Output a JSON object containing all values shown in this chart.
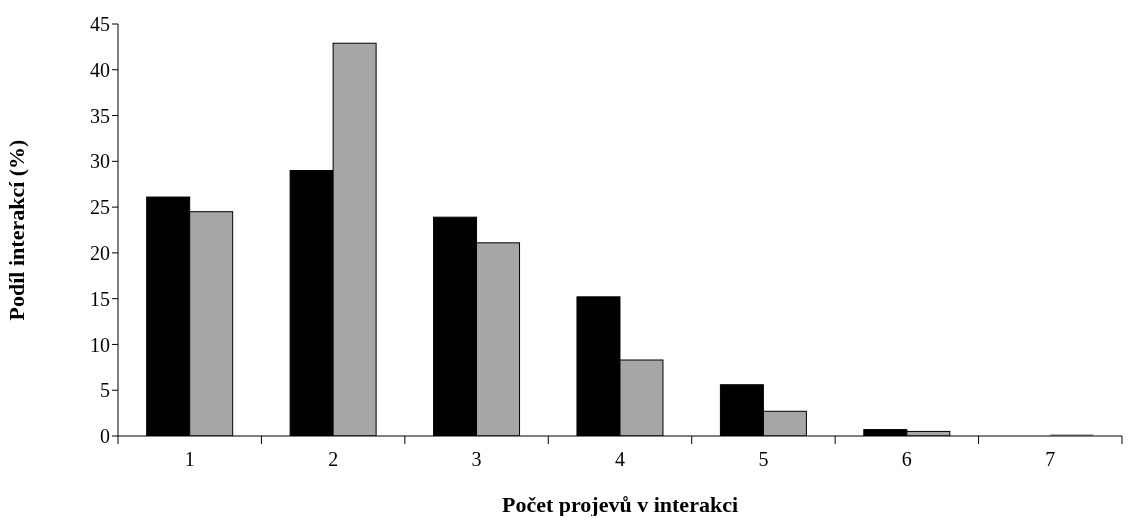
{
  "chart_data": {
    "type": "bar",
    "xlabel": "Počet projevů v interakci",
    "ylabel": "Podíl interakcí (%)",
    "categories": [
      "1",
      "2",
      "3",
      "4",
      "5",
      "6",
      "7"
    ],
    "series": [
      {
        "color": "#000000",
        "values": [
          26.1,
          29.0,
          23.9,
          15.2,
          5.6,
          0.7,
          0
        ]
      },
      {
        "color": "#a6a6a6",
        "values": [
          24.5,
          42.9,
          21.1,
          8.3,
          2.7,
          0.5,
          0.2
        ]
      }
    ],
    "ylim": [
      0,
      45
    ],
    "yticks": [
      0,
      5,
      10,
      15,
      20,
      25,
      30,
      35,
      40,
      45
    ],
    "grid": false,
    "legend": false
  }
}
